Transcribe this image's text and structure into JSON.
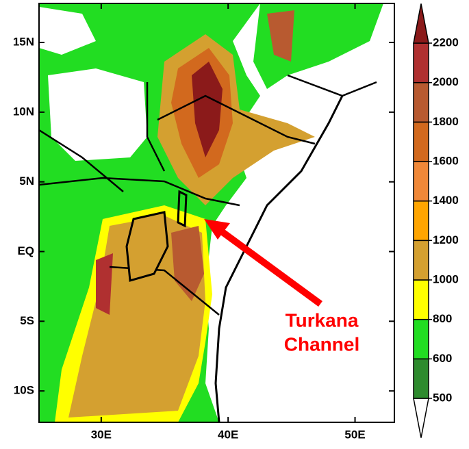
{
  "map": {
    "xlim": [
      25.1,
      53.1
    ],
    "ylim": [
      -12.25,
      17.8
    ],
    "xticks": [
      {
        "value": 30,
        "label": "30E"
      },
      {
        "value": 40,
        "label": "40E"
      },
      {
        "value": 50,
        "label": "50E"
      }
    ],
    "yticks": [
      {
        "value": -10,
        "label": "10S"
      },
      {
        "value": -5,
        "label": "5S"
      },
      {
        "value": 0,
        "label": "EQ"
      },
      {
        "value": 5,
        "label": "5N"
      },
      {
        "value": 10,
        "label": "10N"
      },
      {
        "value": 15,
        "label": "15N"
      }
    ],
    "annotation": [
      "Turkana",
      "Channel"
    ]
  },
  "colorbar": {
    "levels": [
      500,
      600,
      800,
      1000,
      1200,
      1400,
      1600,
      1800,
      2000,
      2200
    ],
    "colors": [
      "#ffffff",
      "#2e8b2e",
      "#22dd22",
      "#ffff00",
      "#d4a030",
      "#ffa500",
      "#f08838",
      "#d2691e",
      "#b85a30",
      "#b03030",
      "#8b1a1a"
    ]
  }
}
